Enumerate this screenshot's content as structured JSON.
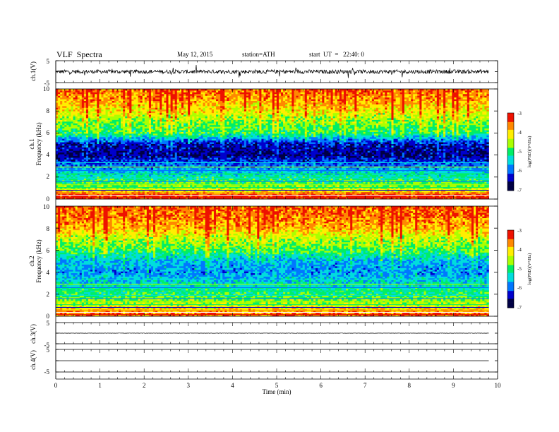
{
  "header": {
    "title": "VLF  Spectra",
    "date": "May 12, 2015",
    "station": "station=ATH",
    "start": "start  UT  =   22:40: 0"
  },
  "chart_data": [
    {
      "type": "line",
      "panel": "ch1-waveform",
      "ylabel": "ch.1(V)",
      "ylim": [
        -5,
        5
      ],
      "yticks": [
        -5,
        5
      ],
      "xlim": [
        0,
        10
      ],
      "description_values": "noisy waveform, baseline ~0 V, spikes to about ±2.5 V",
      "data_extent_min": 9.8
    },
    {
      "type": "heatmap",
      "panel": "ch1-spectrogram",
      "ylabel": "ch.1\nFrequency (kHz)",
      "ylim": [
        0,
        10
      ],
      "yticks": [
        0,
        2,
        4,
        6,
        8,
        10
      ],
      "xlim": [
        0,
        10
      ],
      "data_extent_min": 9.8,
      "zlabel": "log(PSD)(V²/Hz)",
      "zlim": [
        -7,
        -3
      ],
      "zticks": [
        -3,
        -4,
        -5,
        -6,
        -7
      ],
      "colormap": [
        "#000044",
        "#0000cc",
        "#0077ff",
        "#00dddd",
        "#00ee66",
        "#aaff00",
        "#ffee00",
        "#ff8800",
        "#ee1100",
        "#ffffff"
      ],
      "band_profile_khz": [
        {
          "f": 0.3,
          "level": -3.2
        },
        {
          "f": 1.0,
          "level": -4.6
        },
        {
          "f": 2.0,
          "level": -5.2
        },
        {
          "f": 3.0,
          "level": -5.9
        },
        {
          "f": 4.0,
          "level": -6.6
        },
        {
          "f": 5.0,
          "level": -6.4
        },
        {
          "f": 6.0,
          "level": -5.0
        },
        {
          "f": 7.0,
          "level": -4.7
        },
        {
          "f": 8.0,
          "level": -4.2
        },
        {
          "f": 9.0,
          "level": -3.8
        },
        {
          "f": 10.0,
          "level": -3.6
        }
      ]
    },
    {
      "type": "heatmap",
      "panel": "ch2-spectrogram",
      "ylabel": "ch.2\nFrequency (kHz)",
      "ylim": [
        0,
        10
      ],
      "yticks": [
        0,
        2,
        4,
        6,
        8,
        10
      ],
      "xlim": [
        0,
        10
      ],
      "data_extent_min": 9.8,
      "zlabel": "log(PSD)(V²/Hz)",
      "zlim": [
        -7,
        -3
      ],
      "zticks": [
        -3,
        -4,
        -5,
        -6,
        -7
      ],
      "colormap": [
        "#000044",
        "#0000cc",
        "#0077ff",
        "#00dddd",
        "#00ee66",
        "#aaff00",
        "#ffee00",
        "#ff8800",
        "#ee1100",
        "#ffffff"
      ],
      "band_profile_khz": [
        {
          "f": 0.3,
          "level": -3.6
        },
        {
          "f": 1.0,
          "level": -4.4
        },
        {
          "f": 2.0,
          "level": -5.0
        },
        {
          "f": 3.0,
          "level": -5.4
        },
        {
          "f": 4.0,
          "level": -5.8
        },
        {
          "f": 5.0,
          "level": -5.6
        },
        {
          "f": 6.0,
          "level": -4.9
        },
        {
          "f": 7.0,
          "level": -4.5
        },
        {
          "f": 8.0,
          "level": -3.9
        },
        {
          "f": 9.0,
          "level": -3.6
        },
        {
          "f": 10.0,
          "level": -3.5
        }
      ]
    },
    {
      "type": "line",
      "panel": "ch3-waveform",
      "ylabel": "ch.3(V)",
      "ylim": [
        -5,
        5
      ],
      "yticks": [
        -5,
        5
      ],
      "xlim": [
        0,
        10
      ],
      "data_extent_min": 9.8,
      "description_values": "near-flat trace, ~0 V"
    },
    {
      "type": "line",
      "panel": "ch4-waveform",
      "ylabel": "ch.4(V)",
      "ylim": [
        -5,
        5
      ],
      "yticks": [
        -5,
        5
      ],
      "xlim": [
        0,
        10
      ],
      "data_extent_min": 9.8,
      "description_values": "flat trace, ~0 V"
    }
  ],
  "xaxis": {
    "label": "Time  (min)",
    "ticks": [
      "0",
      "1",
      "2",
      "3",
      "4",
      "5",
      "6",
      "7",
      "8",
      "9",
      "10"
    ]
  },
  "tick_text": {
    "ch1_pos": "5",
    "ch1_neg": "-5",
    "ch3_pos": "5",
    "ch3_neg": "-5",
    "ch4_pos": "5",
    "ch4_neg": "-5",
    "f0": "0",
    "f2": "2",
    "f4": "4",
    "f6": "6",
    "f8": "8",
    "f10": "10",
    "c3": "-3",
    "c4": "-4",
    "c5": "-5",
    "c6": "-6",
    "c7": "-7"
  },
  "labels": {
    "ch1": "ch.1(V)",
    "ch1_freq_a": "ch.1",
    "ch1_freq_b": "Frequency  (kHz)",
    "ch2_freq_a": "ch.2",
    "ch2_freq_b": "Frequency  (kHz)",
    "ch3": "ch.3(V)",
    "ch4": "ch.4(V)",
    "cbar": "log(PSD)(V²/Hz)"
  }
}
